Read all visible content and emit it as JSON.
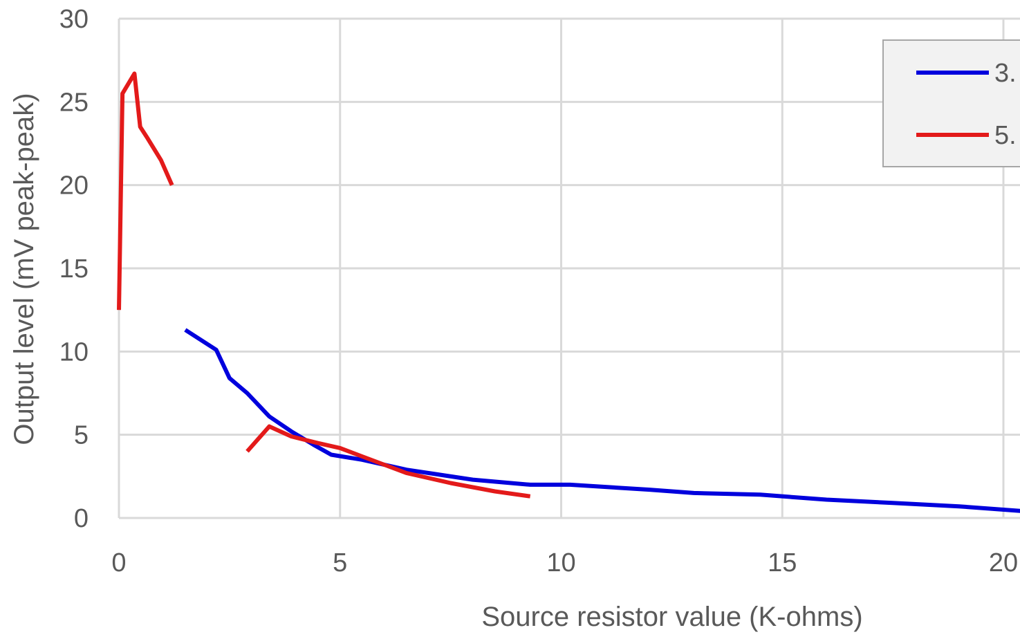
{
  "chart_data": {
    "type": "line",
    "title": "",
    "xlabel": "Source resistor value (K-ohms)",
    "ylabel": "Output level (mV peak-peak)",
    "xlim": [
      0,
      20
    ],
    "ylim": [
      0,
      30
    ],
    "x_ticks": [
      0,
      5,
      10,
      15,
      20
    ],
    "x_tick_labels": [
      "0",
      "5",
      "10",
      "15",
      "20"
    ],
    "y_ticks": [
      0,
      5,
      10,
      15,
      20,
      25,
      30
    ],
    "y_tick_labels": [
      "0",
      "5",
      "10",
      "15",
      "20",
      "25",
      "30"
    ],
    "grid": true,
    "legend_position": "top-right",
    "series": [
      {
        "name": "3.",
        "color": "#0000dd",
        "x": [
          1.5,
          2.2,
          2.5,
          2.9,
          3.4,
          3.9,
          4.4,
          4.8,
          5.5,
          6.5,
          8.0,
          9.3,
          10.2,
          12.0,
          13.0,
          14.5,
          16.0,
          17.5,
          19.0,
          20.5
        ],
        "y": [
          11.3,
          10.1,
          8.4,
          7.5,
          6.1,
          5.2,
          4.4,
          3.8,
          3.5,
          2.9,
          2.3,
          2.0,
          2.0,
          1.7,
          1.5,
          1.4,
          1.1,
          0.9,
          0.7,
          0.4
        ]
      },
      {
        "name": "5.",
        "color": "#e31a1a",
        "segments": [
          {
            "x": [
              0.0,
              0.08,
              0.35,
              0.48,
              0.65,
              0.95,
              1.2
            ],
            "y": [
              12.5,
              25.5,
              26.7,
              23.5,
              22.8,
              21.5,
              20.0
            ]
          },
          {
            "x": [
              2.9,
              3.4,
              3.9,
              4.5,
              5.0,
              5.5,
              6.5,
              7.5,
              8.5,
              9.3
            ],
            "y": [
              4.0,
              5.5,
              4.9,
              4.5,
              4.2,
              3.7,
              2.7,
              2.1,
              1.6,
              1.3
            ]
          }
        ]
      }
    ]
  }
}
